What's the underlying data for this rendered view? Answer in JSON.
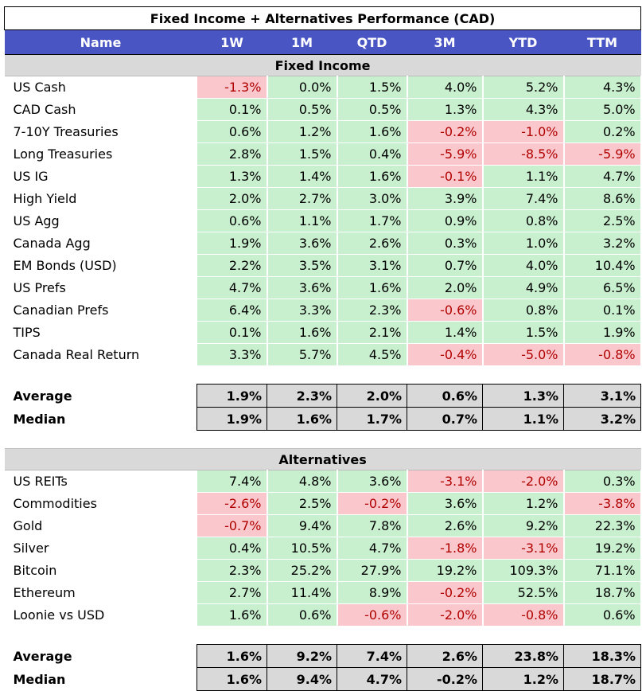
{
  "title": "Fixed Income + Alternatives Performance (CAD)",
  "columns": [
    "Name",
    "1W",
    "1M",
    "QTD",
    "3M",
    "YTD",
    "TTM"
  ],
  "colors": {
    "header_bg": "#4a55c4",
    "positive_bg": "#c8efce",
    "negative_bg": "#fac8cc",
    "negative_text": "#b00000",
    "section_bg": "#d9d9d9"
  },
  "fixed_income": {
    "label": "Fixed Income",
    "rows": [
      {
        "name": "US Cash",
        "values": [
          "-1.3%",
          "0.0%",
          "1.5%",
          "4.0%",
          "5.2%",
          "4.3%"
        ]
      },
      {
        "name": "CAD Cash",
        "values": [
          "0.1%",
          "0.5%",
          "0.5%",
          "1.3%",
          "4.3%",
          "5.0%"
        ]
      },
      {
        "name": "7-10Y Treasuries",
        "values": [
          "0.6%",
          "1.2%",
          "1.6%",
          "-0.2%",
          "-1.0%",
          "0.2%"
        ]
      },
      {
        "name": "Long Treasuries",
        "values": [
          "2.8%",
          "1.5%",
          "0.4%",
          "-5.9%",
          "-8.5%",
          "-5.9%"
        ]
      },
      {
        "name": "US IG",
        "values": [
          "1.3%",
          "1.4%",
          "1.6%",
          "-0.1%",
          "1.1%",
          "4.7%"
        ]
      },
      {
        "name": "High Yield",
        "values": [
          "2.0%",
          "2.7%",
          "3.0%",
          "3.9%",
          "7.4%",
          "8.6%"
        ]
      },
      {
        "name": "US Agg",
        "values": [
          "0.6%",
          "1.1%",
          "1.7%",
          "0.9%",
          "0.8%",
          "2.5%"
        ]
      },
      {
        "name": "Canada Agg",
        "values": [
          "1.9%",
          "3.6%",
          "2.6%",
          "0.3%",
          "1.0%",
          "3.2%"
        ]
      },
      {
        "name": "EM Bonds (USD)",
        "values": [
          "2.2%",
          "3.5%",
          "3.1%",
          "0.7%",
          "4.0%",
          "10.4%"
        ]
      },
      {
        "name": "US Prefs",
        "values": [
          "4.7%",
          "3.6%",
          "1.6%",
          "2.0%",
          "4.9%",
          "6.5%"
        ]
      },
      {
        "name": "Canadian Prefs",
        "values": [
          "6.4%",
          "3.3%",
          "2.3%",
          "-0.6%",
          "0.8%",
          "0.1%"
        ]
      },
      {
        "name": "TIPS",
        "values": [
          "0.1%",
          "1.6%",
          "2.1%",
          "1.4%",
          "1.5%",
          "1.9%"
        ]
      },
      {
        "name": "Canada Real Return",
        "values": [
          "3.3%",
          "5.7%",
          "4.5%",
          "-0.4%",
          "-5.0%",
          "-0.8%"
        ]
      }
    ],
    "average": {
      "label": "Average",
      "values": [
        "1.9%",
        "2.3%",
        "2.0%",
        "0.6%",
        "1.3%",
        "3.1%"
      ]
    },
    "median": {
      "label": "Median",
      "values": [
        "1.9%",
        "1.6%",
        "1.7%",
        "0.7%",
        "1.1%",
        "3.2%"
      ]
    }
  },
  "alternatives": {
    "label": "Alternatives",
    "rows": [
      {
        "name": "US REITs",
        "values": [
          "7.4%",
          "4.8%",
          "3.6%",
          "-3.1%",
          "-2.0%",
          "0.3%"
        ]
      },
      {
        "name": "Commodities",
        "values": [
          "-2.6%",
          "2.5%",
          "-0.2%",
          "3.6%",
          "1.2%",
          "-3.8%"
        ]
      },
      {
        "name": "Gold",
        "values": [
          "-0.7%",
          "9.4%",
          "7.8%",
          "2.6%",
          "9.2%",
          "22.3%"
        ]
      },
      {
        "name": "Silver",
        "values": [
          "0.4%",
          "10.5%",
          "4.7%",
          "-1.8%",
          "-3.1%",
          "19.2%"
        ]
      },
      {
        "name": "Bitcoin",
        "values": [
          "2.3%",
          "25.2%",
          "27.9%",
          "19.2%",
          "109.3%",
          "71.1%"
        ]
      },
      {
        "name": "Ethereum",
        "values": [
          "2.7%",
          "11.4%",
          "8.9%",
          "-0.2%",
          "52.5%",
          "18.7%"
        ]
      },
      {
        "name": "Loonie vs USD",
        "values": [
          "1.6%",
          "0.6%",
          "-0.6%",
          "-2.0%",
          "-0.8%",
          "0.6%"
        ]
      }
    ],
    "average": {
      "label": "Average",
      "values": [
        "1.6%",
        "9.2%",
        "7.4%",
        "2.6%",
        "23.8%",
        "18.3%"
      ]
    },
    "median": {
      "label": "Median",
      "values": [
        "1.6%",
        "9.4%",
        "4.7%",
        "-0.2%",
        "1.2%",
        "18.7%"
      ]
    }
  }
}
